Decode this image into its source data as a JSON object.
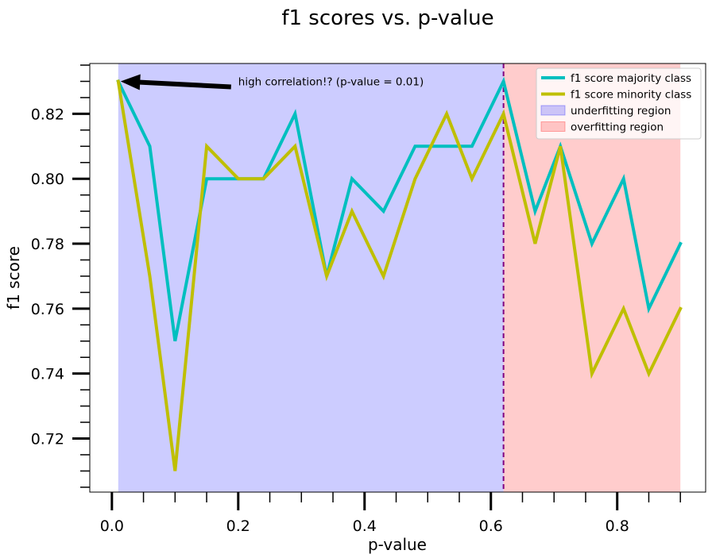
{
  "chart_data": {
    "type": "line",
    "title": "f1 scores vs. p-value",
    "xlabel": "p-value",
    "ylabel": "f1 score",
    "xlim": [
      -0.035,
      0.94
    ],
    "ylim": [
      0.7035,
      0.8355
    ],
    "x_ticks": [
      0.0,
      0.2,
      0.4,
      0.6,
      0.8
    ],
    "x_tick_labels": [
      "0.0",
      "0.2",
      "0.4",
      "0.6",
      "0.8"
    ],
    "x_minor_ticks": [
      0.05,
      0.1,
      0.15,
      0.25,
      0.3,
      0.35,
      0.45,
      0.5,
      0.55,
      0.65,
      0.7,
      0.75,
      0.85,
      0.9
    ],
    "y_ticks": [
      0.72,
      0.74,
      0.76,
      0.78,
      0.8,
      0.82
    ],
    "y_tick_labels": [
      "0.72",
      "0.74",
      "0.76",
      "0.78",
      "0.80",
      "0.82"
    ],
    "y_minor_ticks": [
      0.705,
      0.71,
      0.715,
      0.725,
      0.73,
      0.735,
      0.745,
      0.75,
      0.755,
      0.765,
      0.77,
      0.775,
      0.785,
      0.79,
      0.795,
      0.805,
      0.81,
      0.815,
      0.825,
      0.83,
      0.835
    ],
    "x": [
      0.01,
      0.06,
      0.1,
      0.15,
      0.2,
      0.24,
      0.29,
      0.34,
      0.38,
      0.43,
      0.48,
      0.53,
      0.57,
      0.62,
      0.67,
      0.71,
      0.76,
      0.81,
      0.85,
      0.9
    ],
    "series": [
      {
        "name": "f1 score majority class",
        "color": "#00bfbf",
        "values": [
          0.83,
          0.81,
          0.75,
          0.8,
          0.8,
          0.8,
          0.82,
          0.77,
          0.8,
          0.79,
          0.81,
          0.81,
          0.81,
          0.83,
          0.79,
          0.81,
          0.78,
          0.8,
          0.76,
          0.78
        ]
      },
      {
        "name": "f1 score minority class",
        "color": "#bfbf00",
        "values": [
          0.83,
          0.77,
          0.71,
          0.81,
          0.8,
          0.8,
          0.81,
          0.77,
          0.79,
          0.77,
          0.8,
          0.82,
          0.8,
          0.82,
          0.78,
          0.81,
          0.74,
          0.76,
          0.74,
          0.76
        ]
      }
    ],
    "regions": [
      {
        "name": "underfitting region",
        "x_range": [
          0.01,
          0.62
        ],
        "color": "#0000ff",
        "alpha": 0.2
      },
      {
        "name": "overfitting region",
        "x_range": [
          0.62,
          0.9
        ],
        "color": "#ff0000",
        "alpha": 0.2
      }
    ],
    "vline": {
      "x": 0.62,
      "color": "#800080",
      "style": "dashed"
    },
    "annotation": {
      "text": "high correlation!? (p-value = 0.01)",
      "xy": [
        0.01,
        0.83
      ],
      "xytext": [
        0.2,
        0.83
      ]
    },
    "legend_position": "top-right",
    "grid": false
  }
}
